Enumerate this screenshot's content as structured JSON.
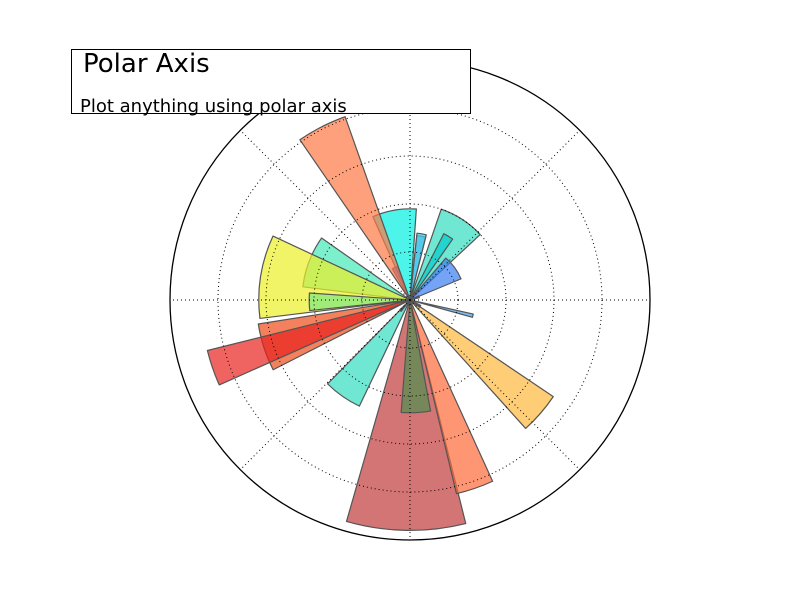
{
  "title": "Polar Axis",
  "subtitle": "Plot anything using polar axis",
  "chart_data": {
    "type": "bar",
    "projection": "polar",
    "radial_grid": [
      2,
      4,
      6,
      8
    ],
    "rmax": 10,
    "angular_grid_deg": [
      0,
      45,
      90,
      135,
      180,
      225,
      270,
      315
    ],
    "grid": true,
    "grid_style": "dotted",
    "theta_tick_labels": false,
    "r_tick_labels": false,
    "bar_edge_color": "#555555",
    "bar_alpha": 0.7,
    "bars": [
      {
        "theta_deg": 57,
        "width_deg": 28,
        "r": 4.0,
        "color": "#33ddc0"
      },
      {
        "theta_deg": 80,
        "width_deg": 8,
        "r": 2.7,
        "color": "#5b9cf2"
      },
      {
        "theta_deg": 80,
        "width_deg": 8,
        "r": 2.8,
        "color": "#3ad0e8"
      },
      {
        "theta_deg": 59,
        "width_deg": 8,
        "r": 3.1,
        "color": "#00cccc"
      },
      {
        "theta_deg": 36,
        "width_deg": 27,
        "r": 2.3,
        "color": "#3a7df2"
      },
      {
        "theta_deg": 100,
        "width_deg": 28,
        "r": 3.8,
        "color": "#00f0e0"
      },
      {
        "theta_deg": 115,
        "width_deg": 9,
        "r": 1.5,
        "color": "#2255ee"
      },
      {
        "theta_deg": 117,
        "width_deg": 15,
        "r": 8.1,
        "color": "#ff7744"
      },
      {
        "theta_deg": 159,
        "width_deg": 28,
        "r": 4.5,
        "color": "#44e8b6"
      },
      {
        "theta_deg": 171,
        "width_deg": 32,
        "r": 6.3,
        "color": "#ecf028"
      },
      {
        "theta_deg": 181,
        "width_deg": 10,
        "r": 4.2,
        "color": "#7fe87f"
      },
      {
        "theta_deg": 198,
        "width_deg": 18,
        "r": 6.4,
        "color": "#ee4c18"
      },
      {
        "theta_deg": 199,
        "width_deg": 10,
        "r": 8.7,
        "color": "#e8221e"
      },
      {
        "theta_deg": 235,
        "width_deg": 19,
        "r": 4.9,
        "color": "#33ddc0"
      },
      {
        "theta_deg": 269,
        "width_deg": 30,
        "r": 9.6,
        "color": "#c03a3a"
      },
      {
        "theta_deg": 273,
        "width_deg": 15,
        "r": 4.7,
        "color": "#4f8f4f"
      },
      {
        "theta_deg": 289,
        "width_deg": 11,
        "r": 8.3,
        "color": "#ff6a38"
      },
      {
        "theta_deg": 319,
        "width_deg": 14,
        "r": 7.2,
        "color": "#ffb83a"
      },
      {
        "theta_deg": 346,
        "width_deg": 3,
        "r": 2.7,
        "color": "#4aa0e8"
      },
      {
        "theta_deg": 328,
        "width_deg": 10,
        "r": 0.5,
        "color": "#3344dd"
      },
      {
        "theta_deg": 228,
        "width_deg": 8,
        "r": 0.6,
        "color": "#223388"
      },
      {
        "theta_deg": 20,
        "width_deg": 12,
        "r": 0.4,
        "color": "#884422"
      }
    ]
  }
}
